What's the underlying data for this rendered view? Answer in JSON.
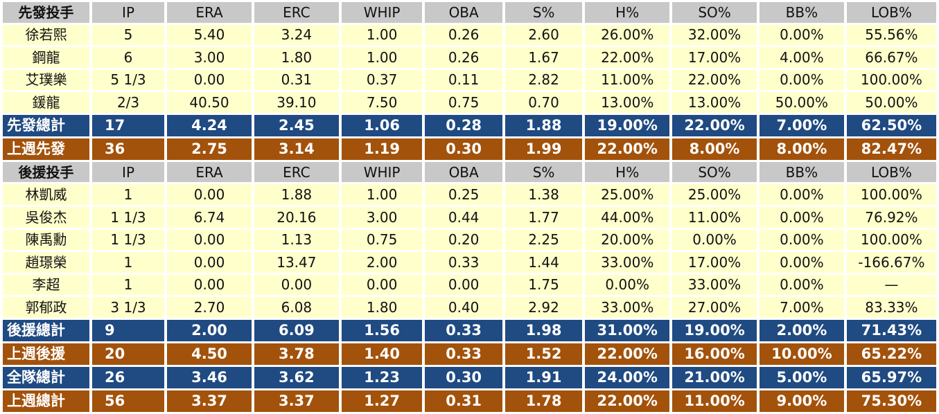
{
  "columns": [
    "IP",
    "ERA",
    "ERC",
    "WHIP",
    "OBA",
    "S%",
    "H%",
    "SO%",
    "BB%",
    "LOB%"
  ],
  "colors": {
    "header_bg": "#c8c8c8",
    "player_bg": "#ffffcc",
    "total_blue": "#1f4a82",
    "total_brown": "#a3520b"
  },
  "rows": [
    {
      "type": "header",
      "cells": [
        "先發投手",
        "IP",
        "ERA",
        "ERC",
        "WHIP",
        "OBA",
        "S%",
        "H%",
        "SO%",
        "BB%",
        "LOB%"
      ]
    },
    {
      "type": "player",
      "cells": [
        "徐若熙",
        "5",
        "5.40",
        "3.24",
        "1.00",
        "0.26",
        "2.60",
        "26.00%",
        "32.00%",
        "0.00%",
        "55.56%"
      ]
    },
    {
      "type": "player",
      "cells": [
        "鋼龍",
        "6",
        "3.00",
        "1.80",
        "1.00",
        "0.26",
        "1.67",
        "22.00%",
        "17.00%",
        "4.00%",
        "66.67%"
      ]
    },
    {
      "type": "player",
      "cells": [
        "艾璞樂",
        "5 1/3",
        "0.00",
        "0.31",
        "0.37",
        "0.11",
        "2.82",
        "11.00%",
        "22.00%",
        "0.00%",
        "100.00%"
      ]
    },
    {
      "type": "player",
      "cells": [
        "鍰龍",
        "2/3",
        "40.50",
        "39.10",
        "7.50",
        "0.75",
        "0.70",
        "13.00%",
        "13.00%",
        "50.00%",
        "50.00%"
      ]
    },
    {
      "type": "total-blue",
      "cells": [
        "先發總計",
        "17",
        "4.24",
        "2.45",
        "1.06",
        "0.28",
        "1.88",
        "19.00%",
        "22.00%",
        "7.00%",
        "62.50%"
      ]
    },
    {
      "type": "total-brown",
      "cells": [
        "上週先發",
        "36",
        "2.75",
        "3.14",
        "1.19",
        "0.30",
        "1.99",
        "22.00%",
        "8.00%",
        "8.00%",
        "82.47%"
      ]
    },
    {
      "type": "header",
      "cells": [
        "後援投手",
        "IP",
        "ERA",
        "ERC",
        "WHIP",
        "OBA",
        "S%",
        "H%",
        "SO%",
        "BB%",
        "LOB%"
      ]
    },
    {
      "type": "player",
      "cells": [
        "林凱威",
        "1",
        "0.00",
        "1.88",
        "1.00",
        "0.25",
        "1.38",
        "25.00%",
        "25.00%",
        "0.00%",
        "100.00%"
      ]
    },
    {
      "type": "player",
      "cells": [
        "吳俊杰",
        "1 1/3",
        "6.74",
        "20.16",
        "3.00",
        "0.44",
        "1.77",
        "44.00%",
        "11.00%",
        "0.00%",
        "76.92%"
      ]
    },
    {
      "type": "player",
      "cells": [
        "陳禹勳",
        "1 1/3",
        "0.00",
        "1.13",
        "0.75",
        "0.20",
        "2.25",
        "20.00%",
        "0.00%",
        "0.00%",
        "100.00%"
      ]
    },
    {
      "type": "player",
      "cells": [
        "趙璟榮",
        "1",
        "0.00",
        "13.47",
        "2.00",
        "0.33",
        "1.44",
        "33.00%",
        "17.00%",
        "0.00%",
        "-166.67%"
      ]
    },
    {
      "type": "player",
      "cells": [
        "李超",
        "1",
        "0.00",
        "0.00",
        "0.00",
        "0.00",
        "1.75",
        "0.00%",
        "33.00%",
        "0.00%",
        "—"
      ]
    },
    {
      "type": "player",
      "cells": [
        "郭郁政",
        "3 1/3",
        "2.70",
        "6.08",
        "1.80",
        "0.40",
        "2.92",
        "33.00%",
        "27.00%",
        "7.00%",
        "83.33%"
      ]
    },
    {
      "type": "total-blue",
      "cells": [
        "後援總計",
        "9",
        "2.00",
        "6.09",
        "1.56",
        "0.33",
        "1.98",
        "31.00%",
        "19.00%",
        "2.00%",
        "71.43%"
      ]
    },
    {
      "type": "total-brown",
      "cells": [
        "上週後援",
        "20",
        "4.50",
        "3.78",
        "1.40",
        "0.33",
        "1.52",
        "22.00%",
        "16.00%",
        "10.00%",
        "65.22%"
      ]
    },
    {
      "type": "total-blue",
      "cells": [
        "全隊總計",
        "26",
        "3.46",
        "3.62",
        "1.23",
        "0.30",
        "1.91",
        "24.00%",
        "21.00%",
        "5.00%",
        "65.97%"
      ]
    },
    {
      "type": "total-brown",
      "cells": [
        "上週總計",
        "56",
        "3.37",
        "3.37",
        "1.27",
        "0.31",
        "1.78",
        "22.00%",
        "11.00%",
        "9.00%",
        "75.30%"
      ]
    }
  ]
}
